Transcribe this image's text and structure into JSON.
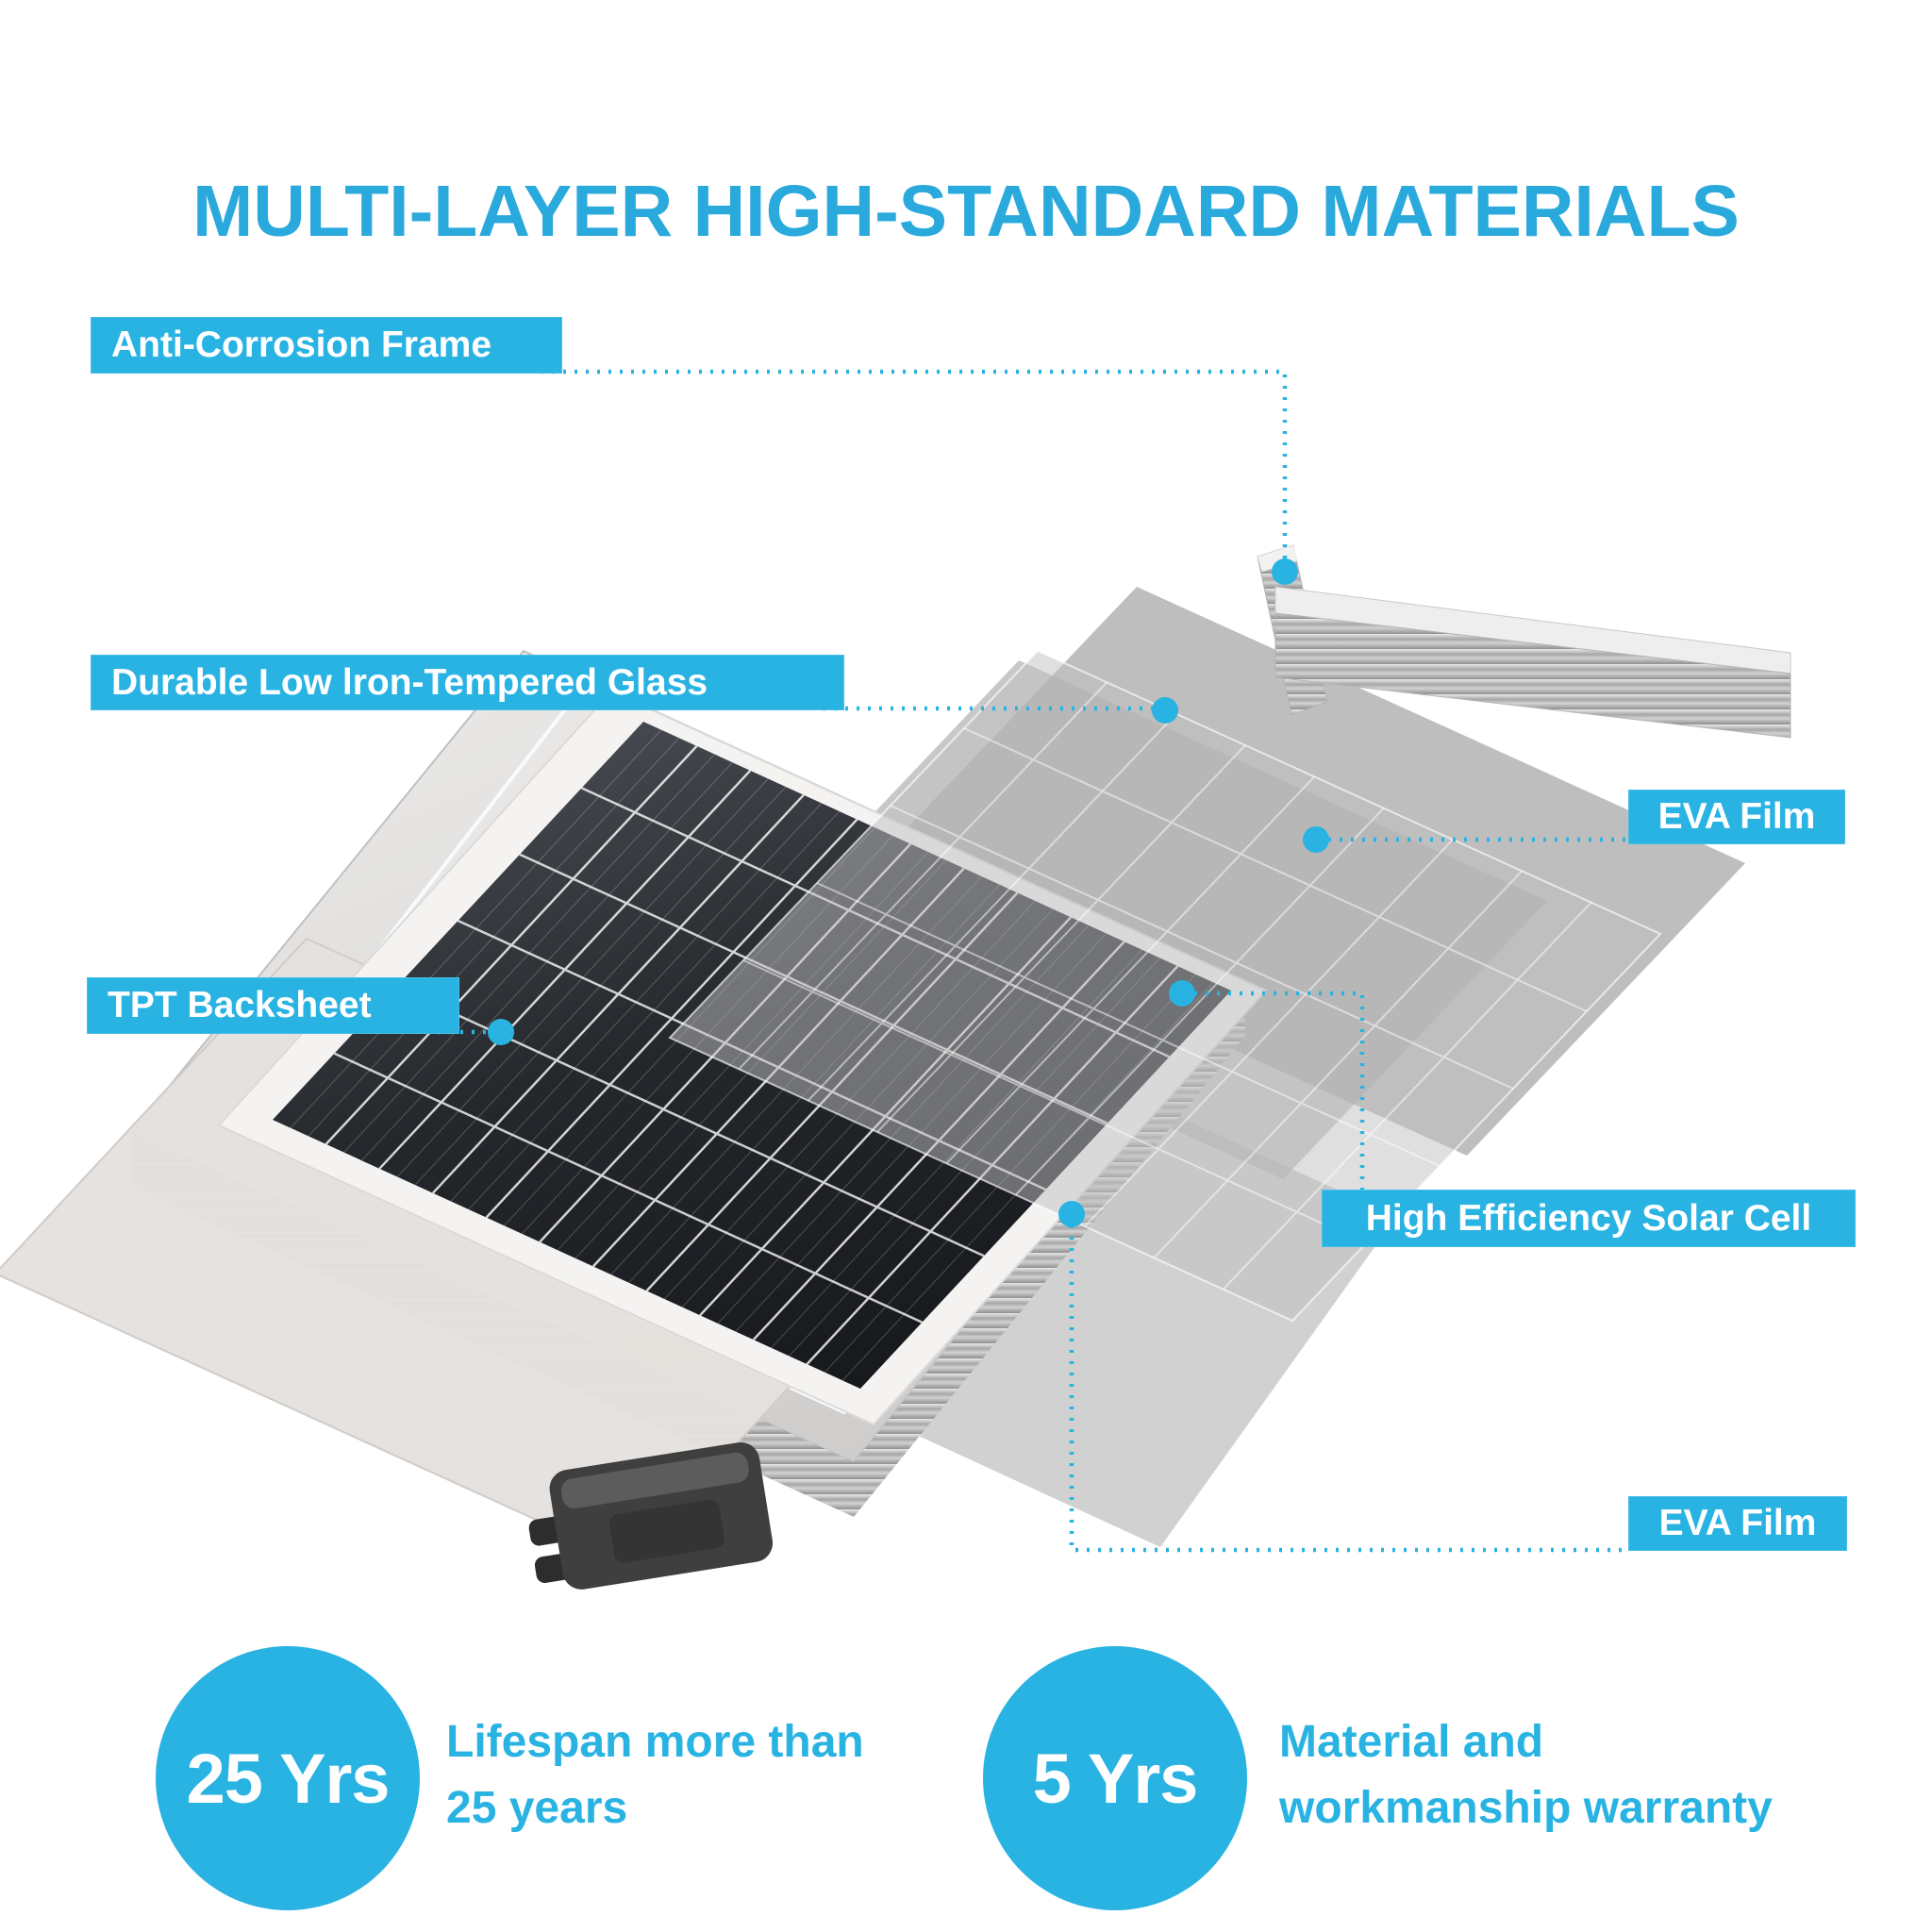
{
  "title": "MULTI-LAYER HIGH-STANDARD MATERIALS",
  "colors": {
    "accent": "#29B3E2",
    "title": "#2AA9DC",
    "label_text": "#FFFFFF",
    "background": "#FFFFFF"
  },
  "labels": {
    "anti_corrosion_frame": "Anti-Corrosion Frame",
    "tempered_glass": "Durable Low lron-Tempered Glass",
    "eva_film_top": "EVA Film",
    "tpt_backsheet": "TPT Backsheet",
    "solar_cell": "High Efficiency Solar Cell",
    "eva_film_bottom": "EVA Film"
  },
  "badges": [
    {
      "value": "25 Yrs",
      "lines": [
        "Lifespan more than",
        "25 years"
      ]
    },
    {
      "value": "5 Yrs",
      "lines": [
        "Material and",
        "workmanship warranty"
      ]
    }
  ]
}
